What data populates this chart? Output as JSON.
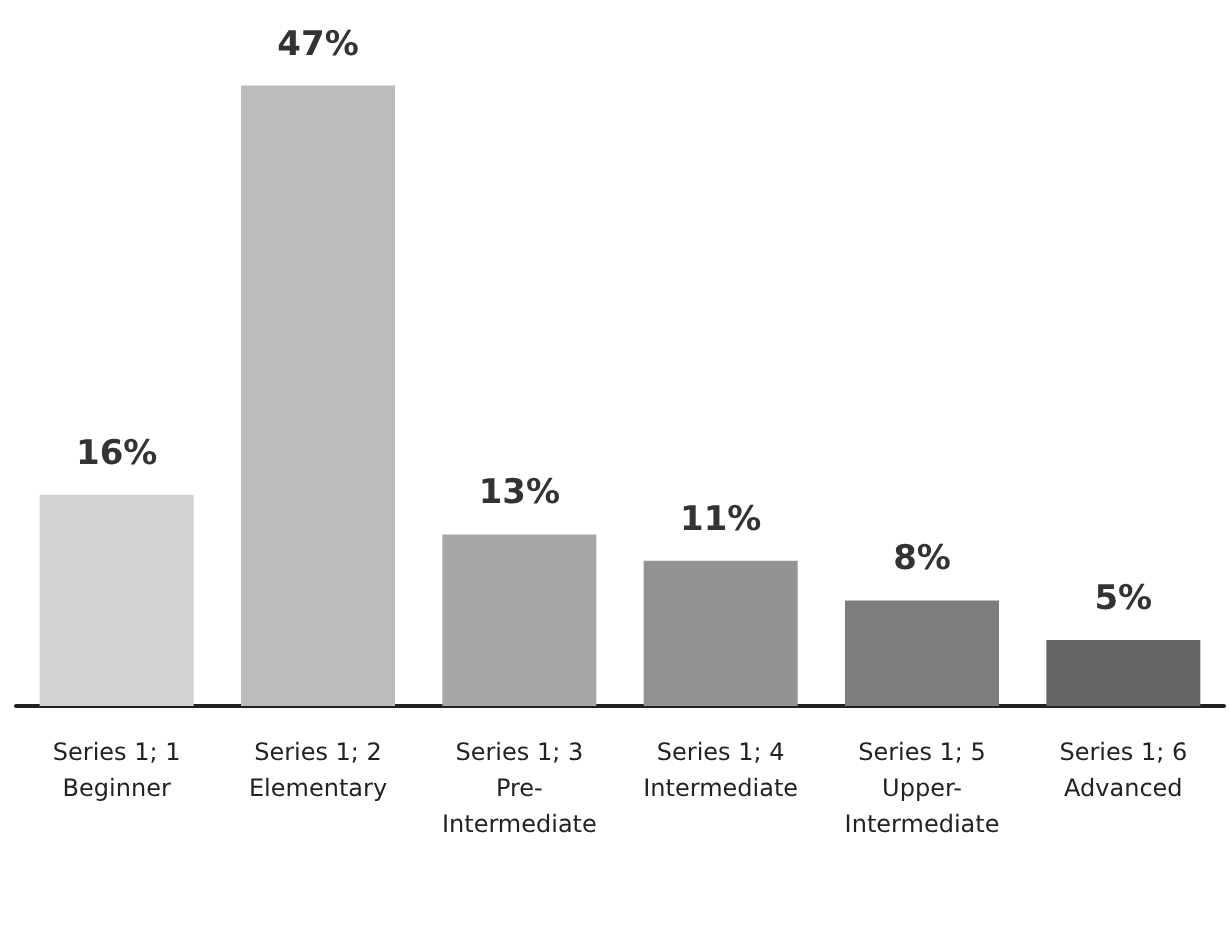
{
  "chart_data": {
    "type": "bar",
    "categories": [
      "Series 1; 1\nBeginner",
      "Series 1; 2\nElementary",
      "Series 1; 3\nPre-\nIntermediate",
      "Series 1; 4\nIntermediate",
      "Series 1; 5\nUpper-\nIntermediate",
      "Series 1; 6\nAdvanced"
    ],
    "values": [
      16,
      47,
      13,
      11,
      8,
      5
    ],
    "value_labels": [
      "16%",
      "47%",
      "13%",
      "11%",
      "8%",
      "5%"
    ],
    "colors": [
      "#d3d3d3",
      "#bcbcbc",
      "#a7a7a7",
      "#939393",
      "#7d7d7d",
      "#666666"
    ]
  }
}
